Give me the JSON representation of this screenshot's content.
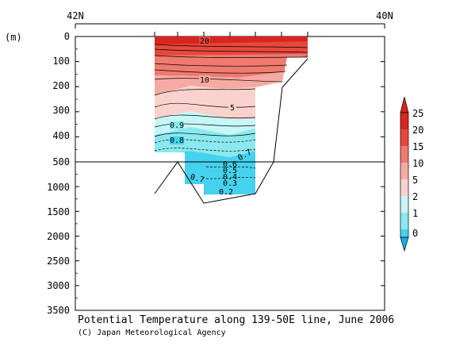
{
  "chart_data": {
    "type": "contour",
    "title": "Potential Temperature along 139-50E line, June 2006",
    "credit": "(C) Japan Meteorological Agency",
    "y_unit": "(m)",
    "x_axis_labels": [
      "42N",
      "40N"
    ],
    "y_ticks_upper": [
      0,
      100,
      200,
      300,
      400,
      500
    ],
    "y_ticks_lower": [
      1000,
      1500,
      2000,
      2500,
      3000,
      3500
    ],
    "contour_labels": [
      "20",
      "10",
      "5",
      "0.9",
      "0.8",
      "0.7",
      "0.7",
      "0.6",
      "0.5",
      "0.4",
      "0.3",
      "0.2"
    ],
    "colorbar": {
      "labels": [
        "25",
        "20",
        "15",
        "10",
        "5",
        "2",
        "1",
        "0"
      ],
      "colors": [
        "#d7261e",
        "#e8473d",
        "#f07a70",
        "#f6aaa3",
        "#fad2cd",
        "#c7f6f6",
        "#8ae9ef",
        "#46d2ee",
        "#0ab4ee"
      ]
    }
  }
}
